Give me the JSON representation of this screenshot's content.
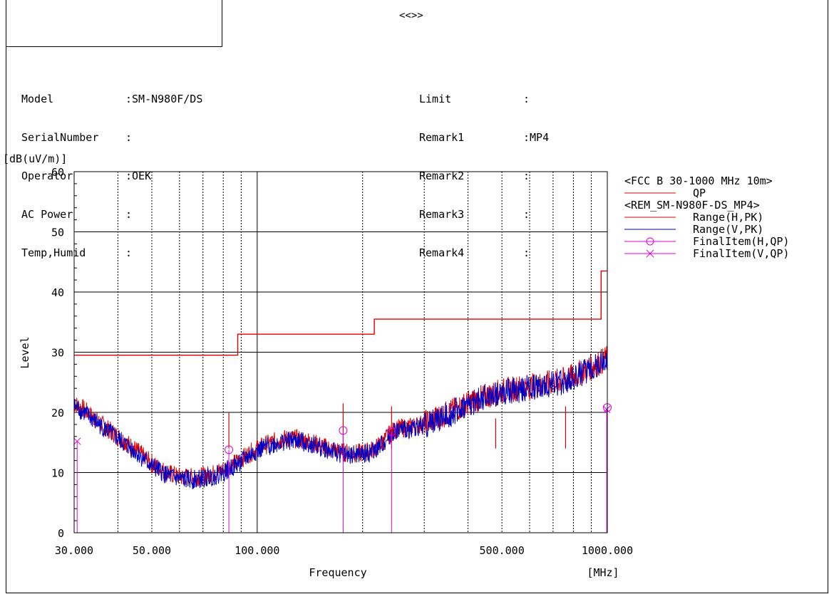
{
  "header": {
    "title": "<<>>"
  },
  "info_left": [
    {
      "label": "Model",
      "value": ":SM-N980F/DS"
    },
    {
      "label": "SerialNumber",
      "value": ":"
    },
    {
      "label": "Operator",
      "value": ":OEK"
    },
    {
      "label": "AC Power",
      "value": ":"
    },
    {
      "label": "Temp,Humid",
      "value": ":"
    }
  ],
  "info_right": [
    {
      "label": "Limit",
      "value": ":"
    },
    {
      "label": "Remark1",
      "value": ":MP4"
    },
    {
      "label": "Remark2",
      "value": ":"
    },
    {
      "label": "Remark3",
      "value": ":"
    },
    {
      "label": "Remark4",
      "value": ":"
    }
  ],
  "chart_data": {
    "type": "line",
    "ylabel": "Level",
    "yunit": "[dB(uV/m)]",
    "xlabel": "Frequency",
    "xunit": "[MHz]",
    "xscale": "log",
    "xlim": [
      30,
      1000
    ],
    "ylim": [
      0,
      60
    ],
    "yticks": [
      0,
      10,
      20,
      30,
      40,
      50,
      60
    ],
    "xtick_labels": [
      {
        "x": 30,
        "label": "30.000"
      },
      {
        "x": 50,
        "label": "50.000"
      },
      {
        "x": 100,
        "label": "100.000"
      },
      {
        "x": 500,
        "label": "500.000"
      },
      {
        "x": 1000,
        "label": "1000.000"
      }
    ],
    "grid": true,
    "legend_position": "right",
    "legend": [
      {
        "text": "<FCC B 30-1000 MHz 10m>",
        "kind": "header"
      },
      {
        "text": "QP",
        "kind": "line",
        "color": "#e00000"
      },
      {
        "text": "<REM_SM-N980F-DS_MP4>",
        "kind": "header"
      },
      {
        "text": "Range(H,PK)",
        "kind": "line",
        "color": "#e00000"
      },
      {
        "text": "Range(V,PK)",
        "kind": "line",
        "color": "#0000c8"
      },
      {
        "text": "FinalItem(H,QP)",
        "kind": "circle",
        "color": "#e000e0"
      },
      {
        "text": "FinalItem(V,QP)",
        "kind": "cross",
        "color": "#e000e0"
      }
    ],
    "limit_QP": {
      "name": "QP",
      "color": "#e00000",
      "points": [
        [
          30,
          29.5
        ],
        [
          88,
          29.5
        ],
        [
          88,
          33.0
        ],
        [
          216,
          33.0
        ],
        [
          216,
          35.5
        ],
        [
          960,
          35.5
        ],
        [
          960,
          43.5
        ],
        [
          1000,
          43.5
        ]
      ]
    },
    "series": [
      {
        "name": "Range(H,PK)",
        "color": "#e00000",
        "x": [
          30,
          32,
          35,
          40,
          45,
          50,
          55,
          60,
          65,
          70,
          75,
          80,
          85,
          90,
          95,
          100,
          110,
          120,
          130,
          140,
          150,
          160,
          170,
          180,
          190,
          200,
          210,
          220,
          230,
          240,
          250,
          270,
          300,
          330,
          360,
          400,
          450,
          500,
          550,
          600,
          650,
          700,
          750,
          800,
          850,
          900,
          950,
          1000
        ],
        "y": [
          21.5,
          20.5,
          18.5,
          16.0,
          13.8,
          11.5,
          10.0,
          9.3,
          9.2,
          9.4,
          9.8,
          10.5,
          11.3,
          12.2,
          13.2,
          14.0,
          15.0,
          15.6,
          15.6,
          15.2,
          14.6,
          14.0,
          13.5,
          13.3,
          13.2,
          13.3,
          13.6,
          14.2,
          15.3,
          16.5,
          17.3,
          17.5,
          18.2,
          19.2,
          20.2,
          21.5,
          22.7,
          23.5,
          24.0,
          24.3,
          24.6,
          25.0,
          25.4,
          26.0,
          26.8,
          27.6,
          28.3,
          29.0
        ]
      },
      {
        "name": "Range(V,PK)",
        "color": "#0000c8",
        "x": [
          30,
          32,
          35,
          40,
          45,
          50,
          55,
          60,
          65,
          70,
          75,
          80,
          85,
          90,
          95,
          100,
          110,
          120,
          130,
          140,
          150,
          160,
          170,
          180,
          190,
          200,
          210,
          220,
          230,
          240,
          250,
          270,
          300,
          330,
          360,
          400,
          450,
          500,
          550,
          600,
          650,
          700,
          750,
          800,
          850,
          900,
          950,
          1000
        ],
        "y": [
          21.0,
          20.0,
          18.2,
          15.6,
          13.4,
          11.1,
          9.6,
          8.9,
          8.8,
          9.0,
          9.4,
          10.1,
          10.9,
          11.8,
          12.8,
          13.6,
          14.6,
          15.2,
          15.3,
          14.9,
          14.3,
          13.7,
          13.2,
          13.0,
          12.9,
          13.0,
          13.3,
          13.9,
          15.0,
          16.2,
          17.0,
          17.2,
          17.9,
          18.9,
          19.9,
          21.2,
          22.4,
          23.2,
          23.7,
          24.0,
          24.3,
          24.7,
          25.1,
          25.7,
          26.5,
          27.3,
          28.0,
          28.7
        ]
      }
    ],
    "spikes": [
      {
        "x": 83,
        "y": 20.0
      },
      {
        "x": 176,
        "y": 21.5
      },
      {
        "x": 242,
        "y": 21.0
      },
      {
        "x": 480,
        "y": 19.0
      },
      {
        "x": 760,
        "y": 21.0
      }
    ],
    "final_items_H": {
      "color": "#e000e0",
      "points": [
        [
          83.0,
          13.8
        ],
        [
          176.0,
          17.0
        ],
        [
          242.0,
          16.8
        ],
        [
          1000.0,
          20.8
        ]
      ]
    },
    "final_items_V": {
      "color": "#e000e0",
      "points": [
        [
          30.6,
          15.2
        ],
        [
          996.0,
          20.5
        ]
      ]
    }
  }
}
